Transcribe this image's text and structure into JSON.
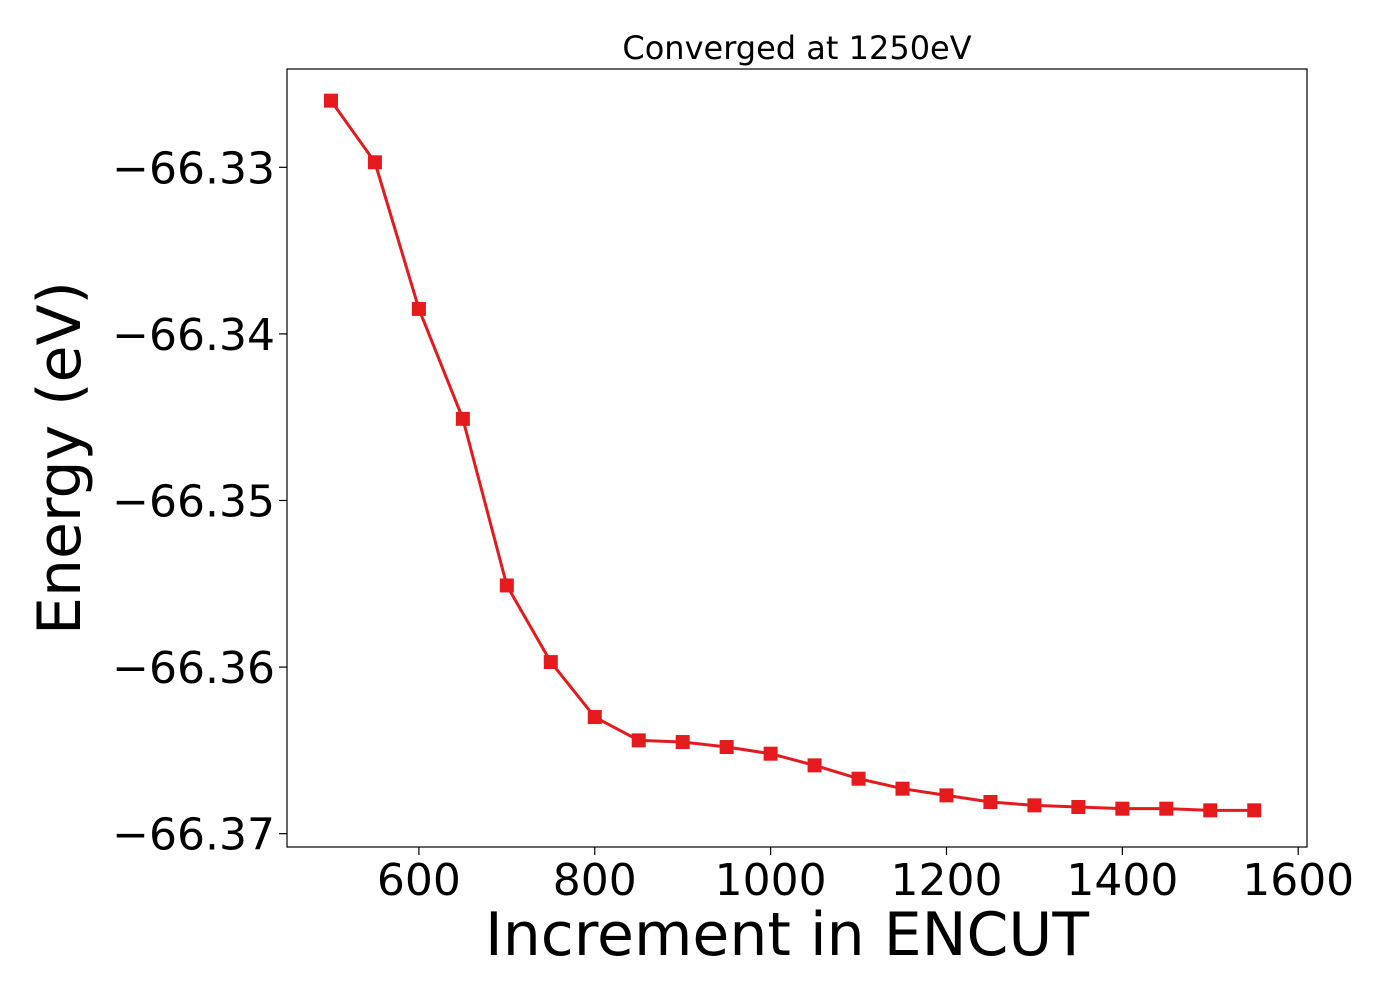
{
  "chart_data": {
    "type": "line",
    "title": "Converged at 1250eV",
    "xlabel": "Increment in ENCUT",
    "ylabel": "Energy (eV)",
    "xlim": [
      450,
      1610
    ],
    "ylim": [
      -66.3708,
      -66.3241
    ],
    "xticks": [
      600,
      800,
      1000,
      1200,
      1400,
      1600
    ],
    "yticks": [
      -66.37,
      -66.36,
      -66.35,
      -66.34,
      -66.33
    ],
    "ytick_labels": [
      "−66.37",
      "−66.36",
      "−66.35",
      "−66.34",
      "−66.33"
    ],
    "grid": false,
    "series": [
      {
        "color": "#e41a1c",
        "marker": "square",
        "x": [
          500,
          550,
          600,
          650,
          700,
          750,
          800,
          850,
          900,
          950,
          1000,
          1050,
          1100,
          1150,
          1200,
          1250,
          1300,
          1350,
          1400,
          1450,
          1500,
          1550
        ],
        "y": [
          -66.326,
          -66.3297,
          -66.3385,
          -66.3451,
          -66.3551,
          -66.3597,
          -66.363,
          -66.3644,
          -66.3645,
          -66.3648,
          -66.3652,
          -66.3659,
          -66.3667,
          -66.3673,
          -66.3677,
          -66.3681,
          -66.3683,
          -66.3684,
          -66.3685,
          -66.3685,
          -66.3686,
          -66.3686
        ]
      }
    ]
  }
}
